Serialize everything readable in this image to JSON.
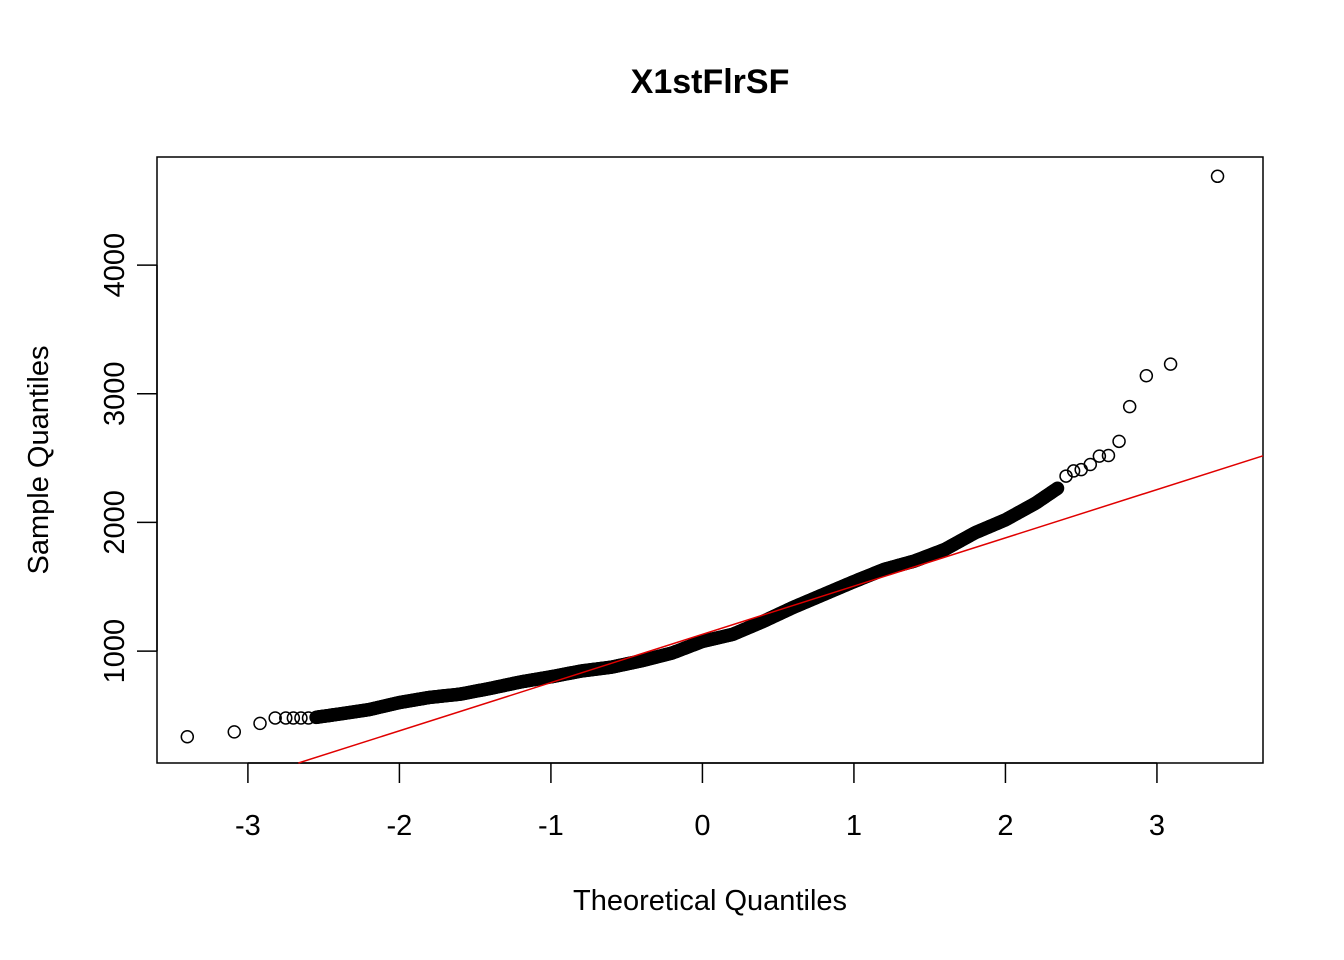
{
  "chart_data": {
    "type": "scatter",
    "title": "X1stFlrSF",
    "xlabel": "Theoretical Quantiles",
    "ylabel": "Sample Quantiles",
    "xlim": [
      -3.6,
      3.7
    ],
    "ylim": [
      130,
      4840
    ],
    "grid": false,
    "legend": "none",
    "x_ticks": [
      -3,
      -2,
      -1,
      0,
      1,
      2,
      3
    ],
    "x_tick_labels": [
      "-3",
      "-2",
      "-1",
      "0",
      "1",
      "2",
      "3"
    ],
    "y_ticks": [
      1000,
      2000,
      3000,
      4000
    ],
    "y_tick_labels": [
      "1000",
      "2000",
      "3000",
      "4000"
    ],
    "colors": {
      "points": "#000000",
      "line": "#e00000",
      "axes": "#000000"
    },
    "reference_line": {
      "intercept": 1130,
      "slope": 375
    },
    "quantile_curve": [
      [
        -2.55,
        485
      ],
      [
        -2.4,
        510
      ],
      [
        -2.2,
        545
      ],
      [
        -2.0,
        600
      ],
      [
        -1.8,
        640
      ],
      [
        -1.6,
        665
      ],
      [
        -1.4,
        710
      ],
      [
        -1.2,
        760
      ],
      [
        -1.0,
        800
      ],
      [
        -0.8,
        845
      ],
      [
        -0.6,
        875
      ],
      [
        -0.4,
        925
      ],
      [
        -0.2,
        985
      ],
      [
        0.0,
        1075
      ],
      [
        0.2,
        1130
      ],
      [
        0.4,
        1230
      ],
      [
        0.6,
        1340
      ],
      [
        0.8,
        1440
      ],
      [
        1.0,
        1540
      ],
      [
        1.2,
        1635
      ],
      [
        1.4,
        1700
      ],
      [
        1.6,
        1790
      ],
      [
        1.8,
        1920
      ],
      [
        2.0,
        2020
      ],
      [
        2.2,
        2150
      ],
      [
        2.35,
        2270
      ]
    ],
    "tail_points": [
      {
        "x": -3.4,
        "y": 334
      },
      {
        "x": -3.09,
        "y": 372
      },
      {
        "x": -2.92,
        "y": 438
      },
      {
        "x": -2.82,
        "y": 480
      },
      {
        "x": -2.75,
        "y": 480
      },
      {
        "x": -2.7,
        "y": 480
      },
      {
        "x": -2.65,
        "y": 480
      },
      {
        "x": -2.6,
        "y": 480
      },
      {
        "x": 2.4,
        "y": 2360
      },
      {
        "x": 2.45,
        "y": 2400
      },
      {
        "x": 2.5,
        "y": 2410
      },
      {
        "x": 2.56,
        "y": 2450
      },
      {
        "x": 2.62,
        "y": 2515
      },
      {
        "x": 2.68,
        "y": 2520
      },
      {
        "x": 2.75,
        "y": 2630
      },
      {
        "x": 2.82,
        "y": 2900
      },
      {
        "x": 2.93,
        "y": 3140
      },
      {
        "x": 3.09,
        "y": 3230
      },
      {
        "x": 3.4,
        "y": 4690
      }
    ]
  }
}
